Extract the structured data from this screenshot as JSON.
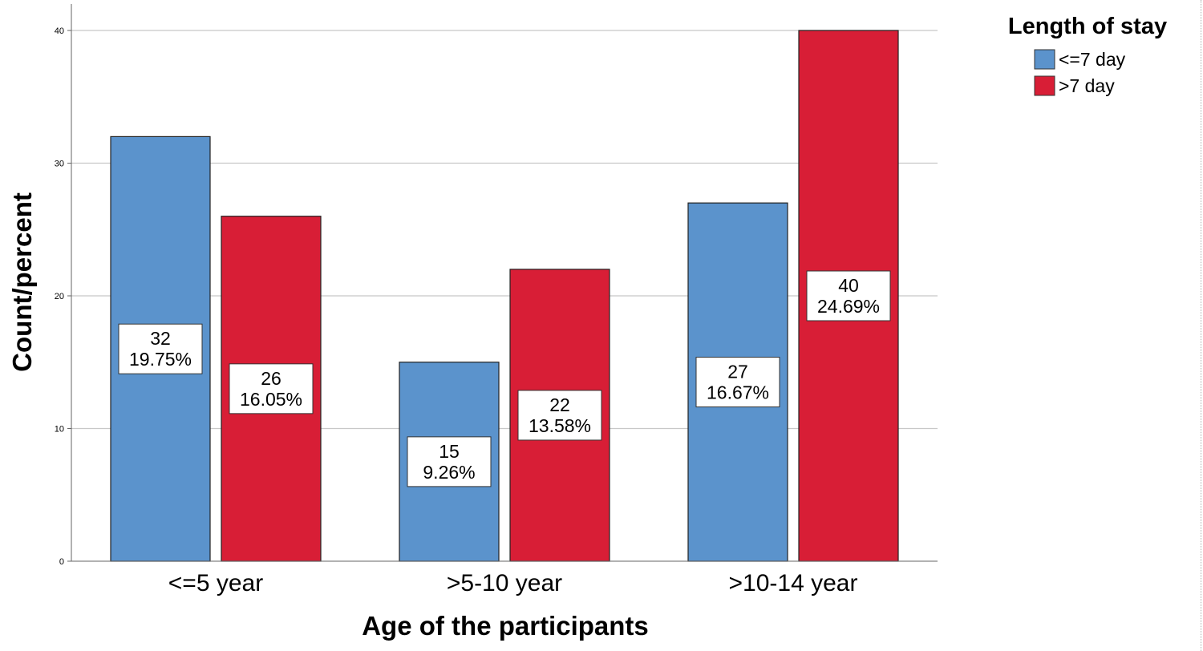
{
  "chart_data": {
    "type": "bar",
    "xlabel": "Age of the participants",
    "ylabel": "Count/percent",
    "categories": [
      "<=5 year",
      ">5-10 year",
      ">10-14 year"
    ],
    "series": [
      {
        "name": "<=7 day",
        "color": "#5b93cc",
        "values": [
          32,
          15,
          27
        ],
        "percents": [
          "19.75%",
          "9.26%",
          "16.67%"
        ]
      },
      {
        "name": ">7 day",
        "color": "#d81e36",
        "values": [
          26,
          22,
          40
        ],
        "percents": [
          "16.05%",
          "13.58%",
          "24.69%"
        ]
      }
    ],
    "ylim": [
      0,
      40
    ],
    "yticks": [
      0,
      10,
      20,
      30,
      40
    ],
    "grid": true,
    "legend": {
      "title": "Length of stay",
      "position": "top-right"
    }
  }
}
